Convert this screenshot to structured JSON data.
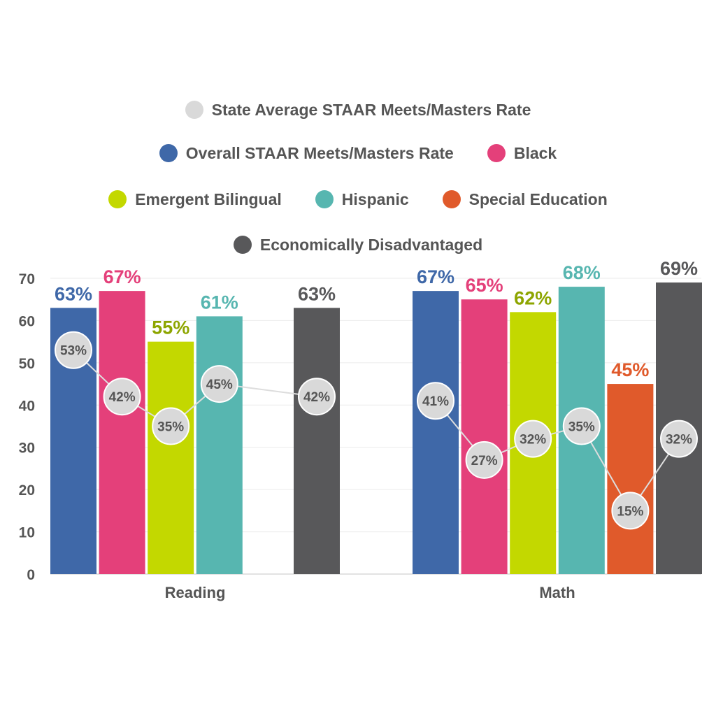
{
  "chart_data": {
    "type": "bar",
    "title": "",
    "xlabel": "",
    "ylabel": "",
    "ylim": [
      0,
      70
    ],
    "yticks": [
      0,
      10,
      20,
      30,
      40,
      50,
      60,
      70
    ],
    "grid": true,
    "legend_position": "top",
    "categories": [
      "Reading",
      "Math"
    ],
    "series": [
      {
        "name": "Overall STAAR Meets/Masters Rate",
        "color": "#3F68A8",
        "values": [
          63,
          67
        ],
        "labels": [
          "63%",
          "67%"
        ]
      },
      {
        "name": "Black",
        "color": "#E4407A",
        "values": [
          67,
          65
        ],
        "labels": [
          "67%",
          "65%"
        ]
      },
      {
        "name": "Emergent Bilingual",
        "color": "#C3D800",
        "label_color": "#8DA500",
        "values": [
          55,
          62
        ],
        "labels": [
          "55%",
          "62%"
        ]
      },
      {
        "name": "Hispanic",
        "color": "#57B6B0",
        "values": [
          61,
          68
        ],
        "labels": [
          "61%",
          "68%"
        ]
      },
      {
        "name": "Special Education",
        "color": "#E05A2B",
        "values": [
          null,
          45
        ],
        "labels": [
          "",
          "45%"
        ]
      },
      {
        "name": "Economically Disadvantaged",
        "color": "#58585A",
        "values": [
          63,
          69
        ],
        "labels": [
          "63%",
          "69%"
        ]
      }
    ],
    "state_average": {
      "name": "State Average STAAR Meets/Masters Rate",
      "color": "#D9D9D9",
      "values": [
        [
          53,
          42,
          35,
          45,
          null,
          42
        ],
        [
          41,
          27,
          32,
          35,
          15,
          32
        ]
      ],
      "labels": [
        [
          "53%",
          "42%",
          "35%",
          "45%",
          "",
          "42%"
        ],
        [
          "41%",
          "27%",
          "32%",
          "35%",
          "15%",
          "32%"
        ]
      ]
    },
    "legend_rows": [
      [
        "State Average STAAR Meets/Masters Rate"
      ],
      [
        "Overall STAAR Meets/Masters Rate",
        "Black"
      ],
      [
        "Emergent Bilingual",
        "Hispanic",
        "Special Education"
      ],
      [
        "Economically Disadvantaged"
      ]
    ]
  }
}
